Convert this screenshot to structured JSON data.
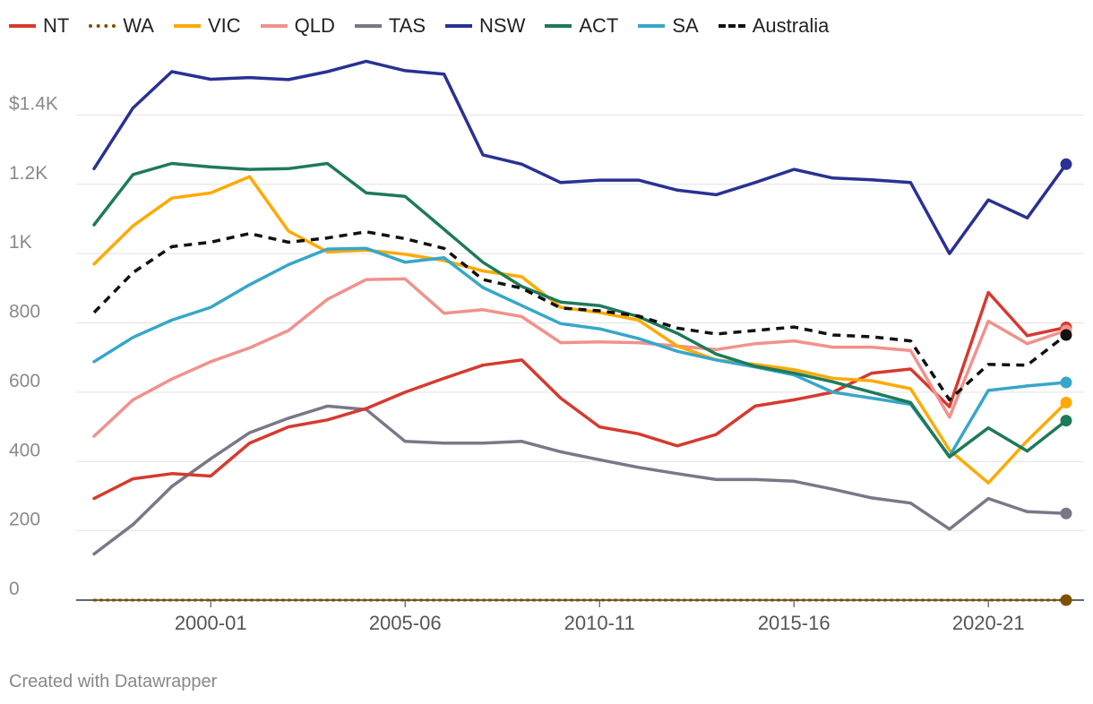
{
  "footer": "Created with Datawrapper",
  "chart_data": {
    "type": "line",
    "title": "",
    "xlabel": "",
    "ylabel": "",
    "ylim": [
      0,
      1600
    ],
    "y_ticks": [
      {
        "value": 0,
        "label": "0"
      },
      {
        "value": 200,
        "label": "200"
      },
      {
        "value": 400,
        "label": "400"
      },
      {
        "value": 600,
        "label": "600"
      },
      {
        "value": 800,
        "label": "800"
      },
      {
        "value": 1000,
        "label": "1K"
      },
      {
        "value": 1200,
        "label": "1.2K"
      },
      {
        "value": 1400,
        "label": "$1.4K"
      }
    ],
    "x_ticks": [
      {
        "index": 3,
        "label": "2000-01"
      },
      {
        "index": 8,
        "label": "2005-06"
      },
      {
        "index": 13,
        "label": "2010-11"
      },
      {
        "index": 18,
        "label": "2015-16"
      },
      {
        "index": 23,
        "label": "2020-21"
      }
    ],
    "x": [
      "1997-98",
      "1998-99",
      "1999-00",
      "2000-01",
      "2001-02",
      "2002-03",
      "2003-04",
      "2004-05",
      "2005-06",
      "2006-07",
      "2007-08",
      "2008-09",
      "2009-10",
      "2010-11",
      "2011-12",
      "2012-13",
      "2013-14",
      "2014-15",
      "2015-16",
      "2016-17",
      "2017-18",
      "2018-19",
      "2019-20",
      "2020-21",
      "2021-22",
      "2022-23"
    ],
    "grid": true,
    "legend_position": "top-left",
    "series": [
      {
        "name": "NT",
        "color": "#d63a2f",
        "style": "solid",
        "values": [
          293,
          350,
          365,
          358,
          453,
          500,
          520,
          553,
          600,
          640,
          678,
          693,
          583,
          500,
          480,
          445,
          478,
          560,
          578,
          600,
          655,
          667,
          558,
          888,
          763,
          787
        ]
      },
      {
        "name": "WA",
        "color": "#7f4f00",
        "style": "dotted",
        "values": [
          0,
          0,
          0,
          0,
          0,
          0,
          0,
          0,
          0,
          0,
          0,
          0,
          0,
          0,
          0,
          0,
          0,
          0,
          0,
          0,
          0,
          0,
          0,
          0,
          0,
          0
        ]
      },
      {
        "name": "VIC",
        "color": "#ffaa00",
        "style": "solid",
        "values": [
          970,
          1080,
          1160,
          1175,
          1222,
          1065,
          1005,
          1010,
          998,
          980,
          950,
          933,
          845,
          830,
          808,
          733,
          693,
          680,
          665,
          640,
          633,
          610,
          433,
          338,
          460,
          570
        ]
      },
      {
        "name": "QLD",
        "color": "#f0928c",
        "style": "solid",
        "values": [
          473,
          578,
          638,
          688,
          728,
          778,
          868,
          925,
          927,
          828,
          838,
          818,
          743,
          745,
          743,
          733,
          723,
          740,
          748,
          730,
          730,
          720,
          528,
          805,
          740,
          778
        ]
      },
      {
        "name": "TAS",
        "color": "#7a7787",
        "style": "solid",
        "values": [
          133,
          218,
          328,
          408,
          483,
          525,
          560,
          550,
          458,
          453,
          453,
          458,
          428,
          405,
          383,
          365,
          348,
          348,
          343,
          320,
          295,
          280,
          205,
          293,
          255,
          250
        ]
      },
      {
        "name": "NSW",
        "color": "#2a3193",
        "style": "solid",
        "values": [
          1245,
          1420,
          1525,
          1503,
          1508,
          1502,
          1525,
          1555,
          1528,
          1518,
          1285,
          1258,
          1205,
          1212,
          1212,
          1183,
          1170,
          1205,
          1243,
          1218,
          1213,
          1205,
          1000,
          1155,
          1103,
          1258
        ]
      },
      {
        "name": "ACT",
        "color": "#1e7a5a",
        "style": "solid",
        "values": [
          1083,
          1228,
          1260,
          1250,
          1243,
          1245,
          1260,
          1175,
          1165,
          1070,
          975,
          905,
          860,
          850,
          818,
          770,
          710,
          675,
          655,
          630,
          600,
          570,
          413,
          497,
          430,
          518
        ]
      },
      {
        "name": "SA",
        "color": "#37a7c8",
        "style": "solid",
        "values": [
          688,
          758,
          808,
          845,
          910,
          968,
          1013,
          1015,
          975,
          988,
          902,
          850,
          798,
          783,
          755,
          718,
          693,
          673,
          650,
          600,
          583,
          565,
          415,
          605,
          618,
          628
        ]
      },
      {
        "name": "Australia",
        "color": "#111111",
        "style": "dashed",
        "values": [
          830,
          945,
          1020,
          1033,
          1058,
          1033,
          1045,
          1063,
          1043,
          1015,
          925,
          900,
          843,
          835,
          820,
          785,
          768,
          778,
          788,
          765,
          760,
          748,
          578,
          680,
          678,
          765
        ]
      }
    ]
  }
}
